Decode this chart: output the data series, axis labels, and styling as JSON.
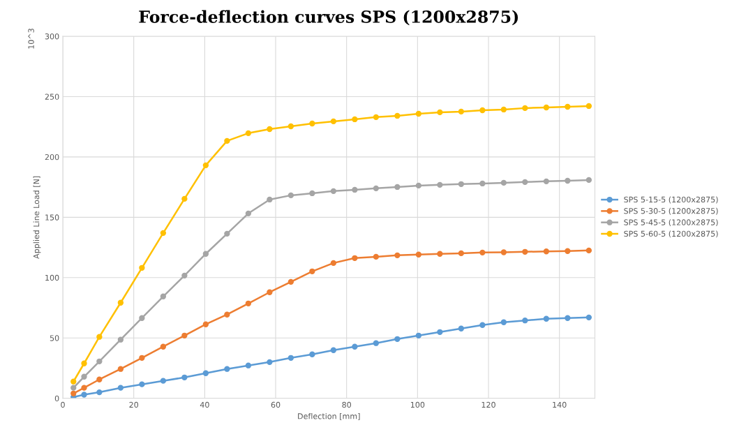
{
  "chart_data": {
    "type": "line",
    "title": "Force-deflection curves SPS (1200x2875)",
    "xlabel": "Deflection [mm]",
    "ylabel": "Applied Line Load [N]",
    "annotations": [
      "10^3"
    ],
    "x": [
      3,
      6,
      10.3,
      16.3,
      22.3,
      28.3,
      34.3,
      40.3,
      46.3,
      52.3,
      58.3,
      64.3,
      70.3,
      76.3,
      82.3,
      88.3,
      94.3,
      100.3,
      106.3,
      112.3,
      118.3,
      124.3,
      130.3,
      136.3,
      142.3,
      148.3
    ],
    "series": [
      {
        "name": "SPS 5-15-5 (1200x2875)",
        "color": "#5b9bd5",
        "values": [
          1,
          3,
          5,
          8.7,
          11.6,
          14.5,
          17.3,
          20.8,
          24.3,
          27.2,
          30,
          33.5,
          36.4,
          39.9,
          42.8,
          45.7,
          49.1,
          52,
          54.9,
          57.8,
          60.7,
          63,
          64.5,
          65.9,
          66.5,
          67
        ]
      },
      {
        "name": "SPS 5-30-5 (1200x2875)",
        "color": "#ed7d31",
        "values": [
          4,
          8.7,
          15.6,
          24.3,
          33.5,
          42.8,
          52,
          61.3,
          69.4,
          78.6,
          87.9,
          96.5,
          105.2,
          112.1,
          116.2,
          117.3,
          118.5,
          119.1,
          119.7,
          120.2,
          120.8,
          121,
          121.4,
          121.7,
          122,
          122.5
        ]
      },
      {
        "name": "SPS 5-45-5 (1200x2875)",
        "color": "#a5a5a5",
        "values": [
          8.7,
          17.9,
          30.6,
          48.6,
          66.5,
          84.4,
          101.7,
          119.7,
          136.4,
          153.2,
          164.7,
          168.2,
          169.9,
          171.7,
          172.8,
          174,
          175.1,
          176.3,
          176.9,
          177.5,
          178,
          178.6,
          179.2,
          179.8,
          180.3,
          180.9
        ]
      },
      {
        "name": "SPS 5-60-5 (1200x2875)",
        "color": "#ffc000",
        "values": [
          13.9,
          28.9,
          50.9,
          79.2,
          108.1,
          137,
          165.3,
          193.1,
          213.3,
          219.7,
          223.1,
          225.4,
          227.7,
          229.5,
          231.2,
          233,
          234.1,
          235.8,
          237,
          237.6,
          238.7,
          239.3,
          240.5,
          241,
          241.6,
          242.2
        ]
      }
    ],
    "xlim": [
      0,
      150
    ],
    "xticks": [
      0,
      20,
      40,
      60,
      80,
      100,
      120,
      140
    ],
    "ylim": [
      0,
      300
    ],
    "yticks": [
      0,
      50,
      100,
      150,
      200,
      250,
      300
    ],
    "grid": true,
    "legend": "right",
    "marker": "circle",
    "line_style": "solid"
  }
}
